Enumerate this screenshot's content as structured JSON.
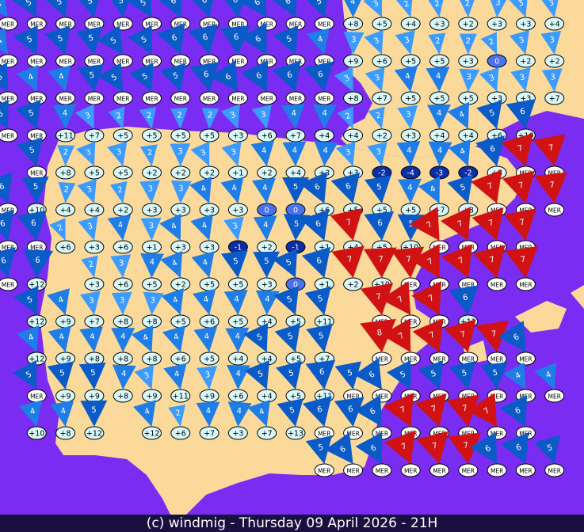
{
  "footer": "(c) windmig - Thursday 09 April 2026 - 21H",
  "colors": {
    "sea": "#7a2cf2",
    "land": "#fbd99b",
    "light_wind": "#3b9bff",
    "moderate_wind": "#1e7de6",
    "fresh_wind": "#0a5bc8",
    "strong_wind": "#d01212",
    "label_fill": "#d8f8fa",
    "negative_label": "#0b2ea6",
    "zero_label": "#4a72ee",
    "sea_label": "#ffffff"
  },
  "stations": {
    "labels": [
      [
        "MER",
        "MER",
        "MER",
        "MER",
        "MER",
        "MER",
        "MER",
        "MER",
        "MER",
        "MER",
        "MER",
        "MER",
        "+8",
        "+5",
        "+4",
        "+3",
        "+2",
        "+3",
        "+3",
        "+4",
        ""
      ],
      [
        "MER",
        "MER",
        "MER",
        "MER",
        "MER",
        "MER",
        "MER",
        "MER",
        "MER",
        "MER",
        "MER",
        "MER",
        "+9",
        "+6",
        "+5",
        "+5",
        "+3",
        "0",
        "+2",
        "+2",
        ""
      ],
      [
        "MER",
        "MER",
        "MER",
        "MER",
        "MER",
        "MER",
        "MER",
        "MER",
        "MER",
        "MER",
        "MER",
        "MER",
        "+8",
        "+7",
        "+5",
        "+5",
        "+5",
        "+3",
        "+3",
        "+7",
        ""
      ],
      [
        "MER",
        "MER",
        "+11",
        "+7",
        "+5",
        "+5",
        "+5",
        "+5",
        "+3",
        "+6",
        "+7",
        "+4",
        "+4",
        "+2",
        "+3",
        "+4",
        "+4",
        "+6",
        "+10",
        "",
        ""
      ],
      [
        "",
        "MER",
        "+8",
        "+5",
        "+5",
        "+2",
        "+2",
        "+2",
        "+1",
        "+2",
        "+4",
        "+3",
        "+3",
        "-2",
        "-4",
        "-3",
        "-2",
        "+8",
        "MER",
        "MER",
        ""
      ],
      [
        "MER",
        "+10",
        "+4",
        "+4",
        "+2",
        "+3",
        "+3",
        "+3",
        "+3",
        "0",
        "0",
        "+6",
        "+5",
        "+5",
        "+5",
        "+7",
        "+8",
        "MER",
        "MER",
        "MER",
        ""
      ],
      [
        "MER",
        "MER",
        "+6",
        "+3",
        "+6",
        "+1",
        "+3",
        "+3",
        "-1",
        "+2",
        "-1",
        "+1",
        "+4",
        "+5",
        "+10",
        "MER",
        "MER",
        "MER",
        "MER",
        "",
        ""
      ],
      [
        "MER",
        "+12",
        "",
        "+3",
        "+6",
        "+5",
        "+2",
        "+5",
        "+5",
        "+3",
        "0",
        "+1",
        "+2",
        "+10",
        "MER",
        "MER",
        "MER",
        "MER",
        "MER",
        "",
        ""
      ],
      [
        "",
        "+12",
        "+9",
        "+7",
        "+8",
        "+8",
        "+5",
        "+6",
        "+5",
        "+4",
        "+5",
        "+11",
        "",
        "MER",
        "MER",
        "MER",
        "+11",
        "",
        "",
        "",
        ""
      ],
      [
        "",
        "+12",
        "+9",
        "+8",
        "+8",
        "+8",
        "+6",
        "+5",
        "+4",
        "+4",
        "+5",
        "+7",
        "",
        "MER",
        "MER",
        "MER",
        "MER",
        "MER",
        "MER",
        "",
        ""
      ],
      [
        "",
        "MER",
        "+9",
        "+9",
        "+8",
        "+9",
        "+11",
        "+9",
        "+6",
        "+4",
        "+5",
        "+11",
        "MER",
        "MER",
        "MER",
        "MER",
        "MER",
        "MER",
        "MER",
        "MER",
        ""
      ],
      [
        "",
        "+10",
        "+8",
        "+12",
        "",
        "+12",
        "+6",
        "+7",
        "+3",
        "+7",
        "+13",
        "MER",
        "MER",
        "MER",
        "MER",
        "MER",
        "MER",
        "MER",
        "MER",
        "",
        ""
      ],
      [
        "",
        "",
        "",
        "",
        "",
        "",
        "",
        "",
        "",
        "",
        "",
        "MER",
        "MER",
        "MER",
        "MER",
        "MER",
        "MER",
        "MER",
        "MER",
        "MER",
        ""
      ]
    ],
    "speeds": [
      [
        4,
        5,
        5,
        5,
        5,
        5,
        6,
        6,
        6,
        6,
        6,
        5,
        4,
        3,
        2,
        2,
        2,
        3,
        3,
        3,
        0
      ],
      [
        4,
        5,
        5,
        5,
        5,
        5,
        6,
        6,
        6,
        6,
        5,
        4,
        3,
        3,
        3,
        2,
        2,
        2,
        3,
        3,
        0
      ],
      [
        5,
        4,
        4,
        5,
        5,
        5,
        5,
        6,
        6,
        6,
        6,
        6,
        3,
        3,
        4,
        4,
        3,
        3,
        3,
        3,
        0
      ],
      [
        5,
        5,
        4,
        3,
        2,
        2,
        2,
        2,
        3,
        3,
        4,
        4,
        2,
        2,
        3,
        4,
        4,
        5,
        6,
        0,
        0
      ],
      [
        0,
        5,
        2,
        3,
        3,
        2,
        3,
        3,
        3,
        4,
        4,
        4,
        3,
        3,
        4,
        4,
        4,
        6,
        7,
        7,
        0
      ],
      [
        6,
        5,
        2,
        3,
        2,
        3,
        3,
        4,
        4,
        4,
        5,
        6,
        6,
        5,
        4,
        4,
        5,
        7,
        7,
        7,
        0
      ],
      [
        6,
        6,
        2,
        3,
        4,
        3,
        4,
        4,
        3,
        4,
        5,
        6,
        7,
        6,
        5,
        7,
        7,
        7,
        7,
        0,
        0
      ],
      [
        6,
        6,
        0,
        2,
        3,
        4,
        4,
        4,
        5,
        5,
        5,
        6,
        7,
        7,
        7,
        7,
        7,
        7,
        7,
        0,
        0
      ],
      [
        0,
        5,
        4,
        3,
        3,
        3,
        4,
        4,
        4,
        4,
        5,
        5,
        0,
        7,
        7,
        7,
        6,
        0,
        0,
        0,
        0
      ],
      [
        0,
        4,
        4,
        4,
        4,
        4,
        4,
        4,
        4,
        5,
        5,
        5,
        0,
        8,
        7,
        7,
        7,
        7,
        6,
        0,
        0
      ],
      [
        0,
        5,
        5,
        5,
        4,
        3,
        4,
        3,
        4,
        5,
        5,
        6,
        5,
        6,
        5,
        5,
        5,
        5,
        4,
        4,
        0
      ],
      [
        0,
        4,
        4,
        5,
        0,
        4,
        2,
        4,
        4,
        4,
        5,
        6,
        6,
        6,
        7,
        7,
        7,
        7,
        6,
        0,
        0
      ],
      [
        0,
        0,
        0,
        0,
        0,
        0,
        0,
        0,
        0,
        0,
        0,
        5,
        6,
        6,
        7,
        7,
        7,
        6,
        6,
        5,
        0
      ]
    ]
  }
}
